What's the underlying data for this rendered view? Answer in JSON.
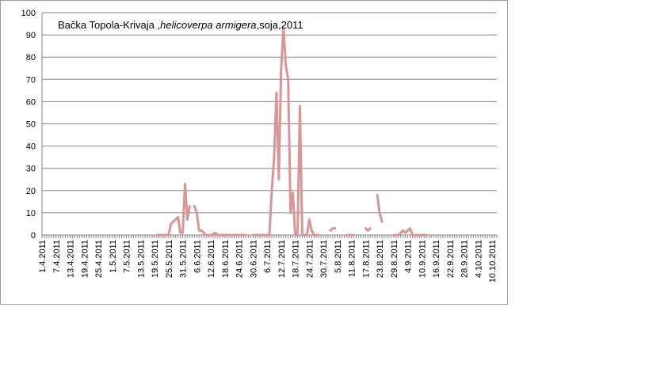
{
  "chart_data": {
    "type": "line",
    "title_parts": [
      {
        "text": "Bačka Topola-Krivaja ,",
        "italic": false
      },
      {
        "text": "helicoverpa armigera",
        "italic": true
      },
      {
        "text": ",soja,2011",
        "italic": false
      }
    ],
    "xlabel": "",
    "ylabel": "",
    "ylim": [
      0,
      100
    ],
    "yticks": [
      0,
      10,
      20,
      30,
      40,
      50,
      60,
      70,
      80,
      90,
      100
    ],
    "grid": true,
    "xlim": [
      "2011-04-01",
      "2011-10-12"
    ],
    "x_tick_labels": [
      "1.4.2011",
      "7.4.2011",
      "13.4.2011",
      "19.4.2011",
      "25.4.2011",
      "1.5.2011",
      "7.5.2011",
      "13.5.2011",
      "19.5.2011",
      "25.5.2011",
      "31.5.2011",
      "6.6.2011",
      "12.6.2011",
      "18.6.2011",
      "24.6.2011",
      "30.6.2011",
      "6.7.2011",
      "12.7.2011",
      "18.7.2011",
      "24.7.2011",
      "30.7.2011",
      "5.8.2011",
      "11.8.2011",
      "17.8.2011",
      "23.8.2011",
      "29.8.2011",
      "4.9.2011",
      "10.9.2011",
      "16.9.2011",
      "22.9.2011",
      "28.9.2011",
      "4.10.2011",
      "10.10.2011"
    ],
    "line_color": "#d99694",
    "axis_color": "#868686",
    "grid_color": "#868686",
    "series": [
      {
        "segments": [
          [
            [
              "2011-05-20",
              0
            ],
            [
              "2011-05-25",
              0
            ],
            [
              "2011-05-26",
              5
            ],
            [
              "2011-05-29",
              8
            ],
            [
              "2011-05-30",
              1
            ],
            [
              "2011-05-31",
              1
            ],
            [
              "2011-06-01",
              23
            ],
            [
              "2011-06-02",
              7
            ],
            [
              "2011-06-03",
              13
            ]
          ],
          [
            [
              "2011-06-05",
              13
            ],
            [
              "2011-06-06",
              10
            ],
            [
              "2011-06-07",
              2
            ],
            [
              "2011-06-08",
              2
            ],
            [
              "2011-06-10",
              0
            ],
            [
              "2011-06-12",
              0
            ],
            [
              "2011-06-14",
              1
            ],
            [
              "2011-06-15",
              0
            ],
            [
              "2011-06-20",
              0
            ],
            [
              "2011-06-25",
              0
            ],
            [
              "2011-06-27",
              0
            ]
          ],
          [
            [
              "2011-06-30",
              0
            ],
            [
              "2011-07-05",
              0
            ],
            [
              "2011-07-07",
              0
            ],
            [
              "2011-07-08",
              20
            ],
            [
              "2011-07-09",
              35
            ],
            [
              "2011-07-10",
              64
            ],
            [
              "2011-07-11",
              25
            ],
            [
              "2011-07-12",
              75
            ],
            [
              "2011-07-13",
              93
            ],
            [
              "2011-07-14",
              76
            ],
            [
              "2011-07-15",
              70
            ],
            [
              "2011-07-16",
              10
            ],
            [
              "2011-07-17",
              19
            ],
            [
              "2011-07-18",
              0
            ],
            [
              "2011-07-19",
              0
            ],
            [
              "2011-07-20",
              58
            ],
            [
              "2011-07-21",
              0
            ],
            [
              "2011-07-22",
              0
            ],
            [
              "2011-07-23",
              0
            ],
            [
              "2011-07-24",
              7
            ],
            [
              "2011-07-25",
              2
            ],
            [
              "2011-07-26",
              0
            ],
            [
              "2011-07-28",
              0
            ]
          ],
          [
            [
              "2011-08-02",
              2
            ],
            [
              "2011-08-03",
              3
            ],
            [
              "2011-08-04",
              3
            ]
          ],
          [
            [
              "2011-08-09",
              0
            ],
            [
              "2011-08-12",
              0
            ]
          ],
          [
            [
              "2011-08-17",
              3
            ],
            [
              "2011-08-18",
              2
            ],
            [
              "2011-08-19",
              3
            ]
          ],
          [
            [
              "2011-08-22",
              18
            ],
            [
              "2011-08-23",
              10
            ],
            [
              "2011-08-24",
              6
            ]
          ],
          [
            [
              "2011-08-29",
              0
            ],
            [
              "2011-08-31",
              0
            ],
            [
              "2011-09-02",
              2
            ],
            [
              "2011-09-03",
              1
            ],
            [
              "2011-09-04",
              2
            ],
            [
              "2011-09-05",
              3
            ],
            [
              "2011-09-06",
              0
            ],
            [
              "2011-09-07",
              0
            ],
            [
              "2011-09-12",
              0
            ]
          ]
        ]
      }
    ]
  }
}
